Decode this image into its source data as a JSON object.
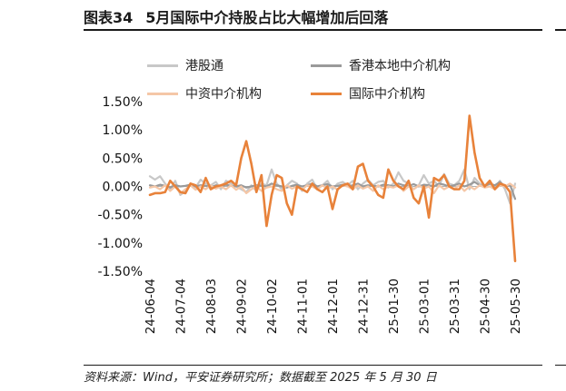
{
  "figure": {
    "number": "图表34",
    "title": "5月国际中介持股占比大幅增加后回落",
    "source": "资料来源：Wind，平安证券研究所；数据截至 2025 年 5 月 30 日"
  },
  "chart_data": {
    "type": "line",
    "title": "5月国际中介持股占比大幅增加后回落",
    "xlabel": "",
    "ylabel": "",
    "ylim": [
      -1.5,
      1.5
    ],
    "yticks": [
      1.5,
      1.0,
      0.5,
      0.0,
      -0.5,
      -1.0,
      -1.5
    ],
    "ytick_labels": [
      "1.50%",
      "1.00%",
      "0.50%",
      "0.00%",
      "-0.50%",
      "-1.00%",
      "-1.50%"
    ],
    "xlim": [
      0,
      72
    ],
    "x_ticks": [
      {
        "x": 0,
        "label": "24-06-04"
      },
      {
        "x": 6,
        "label": "24-07-04"
      },
      {
        "x": 12,
        "label": "24-08-03"
      },
      {
        "x": 18,
        "label": "24-09-02"
      },
      {
        "x": 24,
        "label": "24-10-02"
      },
      {
        "x": 30,
        "label": "24-11-01"
      },
      {
        "x": 36,
        "label": "24-12-01"
      },
      {
        "x": 42,
        "label": "24-12-31"
      },
      {
        "x": 48,
        "label": "25-01-30"
      },
      {
        "x": 54,
        "label": "25-03-01"
      },
      {
        "x": 60,
        "label": "25-03-31"
      },
      {
        "x": 66,
        "label": "25-04-30"
      },
      {
        "x": 72,
        "label": "25-05-30"
      }
    ],
    "legend_position": "top",
    "series": [
      {
        "name": "港股通",
        "color": "#c8c8c8",
        "width": 2.2,
        "values": [
          0.18,
          0.12,
          0.18,
          0.05,
          -0.05,
          0.1,
          -0.15,
          -0.08,
          0.05,
          -0.02,
          0.12,
          0.05,
          0.02,
          0.08,
          -0.05,
          0.1,
          0.05,
          0.0,
          -0.05,
          -0.1,
          0.02,
          -0.08,
          0.05,
          0.02,
          0.3,
          0.05,
          -0.05,
          0.02,
          0.1,
          0.05,
          -0.08,
          0.05,
          0.12,
          -0.05,
          0.02,
          0.1,
          -0.05,
          0.05,
          0.08,
          0.02,
          0.1,
          -0.05,
          0.05,
          0.12,
          0.02,
          0.08,
          0.1,
          -0.02,
          0.05,
          0.25,
          0.1,
          0.05,
          -0.05,
          0.02,
          0.2,
          0.05,
          0.1,
          0.0,
          0.22,
          0.05,
          0.02,
          0.1,
          0.3,
          -0.05,
          0.15,
          0.05,
          0.02,
          0.05,
          -0.02,
          0.1,
          -0.05,
          -0.3,
          0.05
        ]
      },
      {
        "name": "香港本地中介机构",
        "color": "#9a9a9a",
        "width": 2.2,
        "values": [
          0.02,
          0.0,
          0.03,
          0.01,
          -0.02,
          0.02,
          0.0,
          0.01,
          0.03,
          0.0,
          0.02,
          0.01,
          -0.01,
          0.02,
          0.0,
          0.03,
          0.01,
          0.0,
          0.02,
          -0.02,
          0.0,
          0.02,
          0.01,
          0.0,
          0.05,
          0.02,
          0.0,
          -0.02,
          0.01,
          0.03,
          0.0,
          0.02,
          0.05,
          0.0,
          0.02,
          0.04,
          0.0,
          0.01,
          0.03,
          0.0,
          0.02,
          0.05,
          0.0,
          0.02,
          0.01,
          0.0,
          0.03,
          0.02,
          0.0,
          0.05,
          0.02,
          0.01,
          0.04,
          0.0,
          0.03,
          0.02,
          0.0,
          0.05,
          0.03,
          0.0,
          0.02,
          0.05,
          0.0,
          0.03,
          0.08,
          0.02,
          0.0,
          0.05,
          0.02,
          0.08,
          0.0,
          0.03,
          -0.22
        ]
      },
      {
        "name": "中资中介机构",
        "color": "#f5c7a7",
        "width": 2.2,
        "values": [
          -0.02,
          0.0,
          -0.05,
          0.02,
          -0.08,
          0.0,
          -0.12,
          -0.05,
          0.02,
          -0.06,
          0.0,
          -0.05,
          0.02,
          -0.04,
          0.0,
          -0.05,
          0.02,
          -0.06,
          0.0,
          -0.12,
          -0.05,
          0.0,
          -0.08,
          -0.02,
          0.0,
          -0.05,
          -0.08,
          0.02,
          -0.04,
          0.0,
          -0.06,
          0.02,
          0.0,
          -0.05,
          0.02,
          -0.04,
          0.0,
          -0.06,
          0.02,
          0.0,
          -0.05,
          0.02,
          -0.04,
          0.0,
          -0.08,
          0.02,
          -0.05,
          0.0,
          -0.02,
          0.02,
          -0.08,
          0.0,
          -0.05,
          0.02,
          -0.04,
          0.0,
          -0.12,
          0.02,
          -0.05,
          0.0,
          -0.04,
          0.02,
          -0.08,
          0.0,
          -0.05,
          0.02,
          -0.02,
          0.0,
          -0.05,
          0.02,
          0.0,
          0.05,
          -0.02
        ]
      },
      {
        "name": "国际中介机构",
        "color": "#e8823a",
        "width": 2.6,
        "values": [
          -0.15,
          -0.12,
          -0.12,
          -0.1,
          0.1,
          0.0,
          -0.1,
          -0.12,
          0.05,
          0.02,
          -0.1,
          0.15,
          -0.05,
          0.0,
          0.02,
          0.05,
          0.1,
          0.02,
          0.5,
          0.8,
          0.4,
          -0.1,
          0.2,
          -0.7,
          -0.15,
          0.2,
          0.15,
          -0.3,
          -0.5,
          0.0,
          -0.05,
          -0.1,
          0.05,
          -0.05,
          -0.1,
          0.0,
          -0.4,
          -0.05,
          0.02,
          0.05,
          -0.05,
          0.35,
          0.4,
          0.1,
          0.0,
          -0.15,
          -0.2,
          0.3,
          0.1,
          0.0,
          -0.05,
          0.1,
          -0.2,
          -0.3,
          0.0,
          -0.55,
          0.15,
          0.1,
          0.2,
          0.0,
          -0.05,
          -0.05,
          0.1,
          1.25,
          0.6,
          0.15,
          0.0,
          0.1,
          -0.05,
          0.05,
          0.02,
          -0.1,
          -1.32
        ]
      }
    ]
  }
}
